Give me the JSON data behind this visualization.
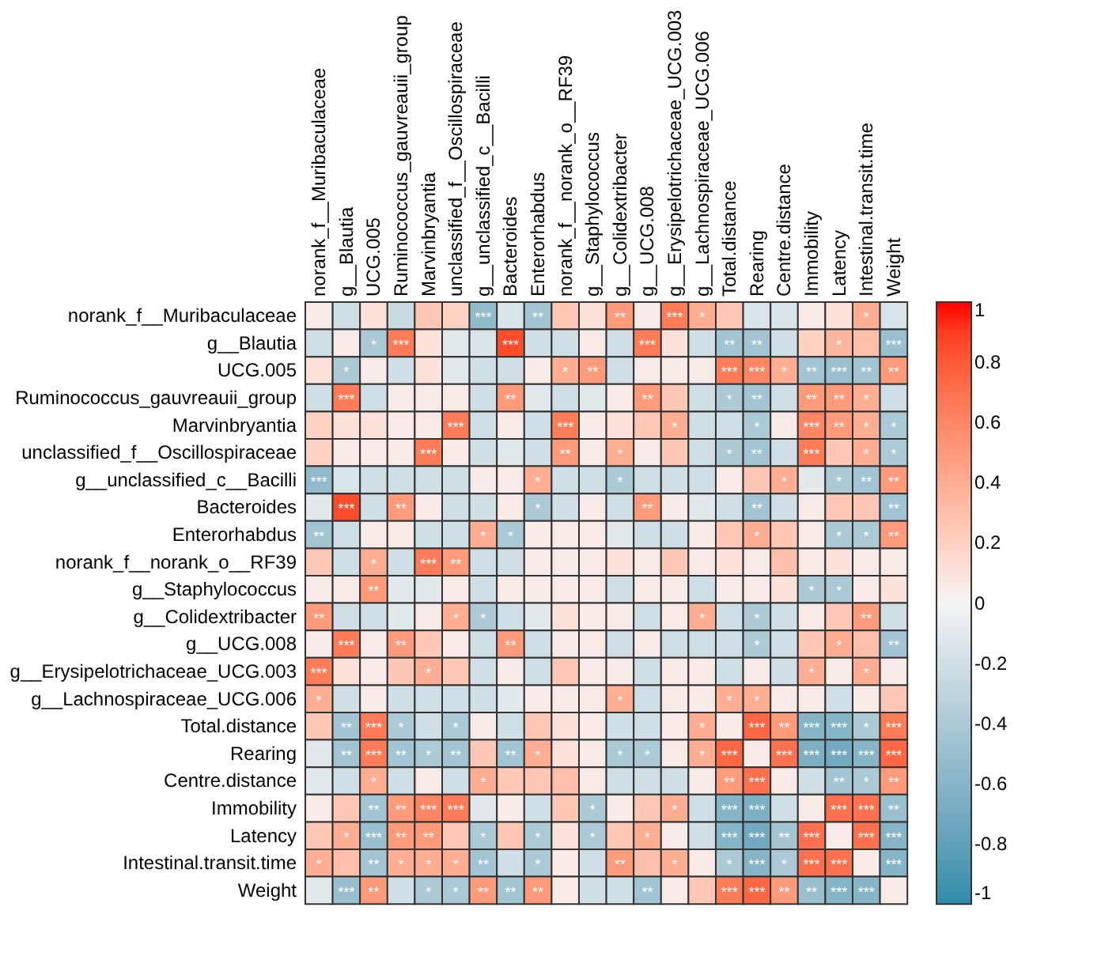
{
  "chart_data": {
    "type": "heatmap",
    "categories": [
      "norank_f__Muribaculaceae",
      "g__Blautia",
      "UCG.005",
      "Ruminococcus_gauvreauii_group",
      "Marvinbryantia",
      "unclassified_f__Oscillospiraceae",
      "g__unclassified_c__Bacilli",
      "Bacteroides",
      "Enterorhabdus",
      "norank_f__norank_o__RF39",
      "g__Staphylococcus",
      "g__Colidextribacter",
      "g__UCG.008",
      "g__Erysipelotrichaceae_UCG.003",
      "g__Lachnospiraceae_UCG.006",
      "Total.distance",
      "Rearing",
      "Centre.distance",
      "Immobility",
      "Latency",
      "Intestinal.transit.time",
      "Weight"
    ],
    "y_categories": [
      "norank_f__Muribaculaceae",
      "g__Blautia",
      "UCG.005",
      "Ruminococcus_gauvreauii_group",
      "Marvinbryantia",
      "unclassified_f__Oscillospiraceae",
      "g__unclassified_c__Bacilli",
      "Bacteroides",
      "Enterorhabdus",
      "norank_f__norank_o__RF39",
      "g__Staphylococcus",
      "g__Colidextribacter",
      "g__UCG.008",
      "g__Erysipelotrichaceae_UCG.003",
      "g__Lachnospiraceae_UCG.006",
      "Total.distance",
      "Rearing",
      "Centre.distance",
      "Immobility",
      "Latency",
      "Intestinal.transit.time",
      "Weight"
    ],
    "cells": [
      [
        0.05,
        -0.2,
        0.1,
        -0.25,
        0.25,
        0.2,
        -0.55,
        -0.15,
        -0.45,
        0.25,
        0.1,
        0.5,
        0.05,
        0.65,
        0.4,
        0.25,
        -0.15,
        -0.15,
        0.05,
        0.1,
        0.4,
        -0.15
      ],
      [
        -0.2,
        0.05,
        -0.4,
        0.65,
        0.1,
        -0.1,
        -0.15,
        0.85,
        -0.2,
        -0.2,
        0.05,
        -0.2,
        0.65,
        0.1,
        -0.2,
        -0.45,
        -0.45,
        -0.2,
        0.2,
        0.35,
        0.3,
        -0.5
      ],
      [
        0.1,
        -0.4,
        0.05,
        -0.2,
        0.1,
        -0.1,
        -0.2,
        -0.2,
        0.05,
        0.4,
        0.5,
        -0.2,
        0.05,
        0.05,
        0.05,
        0.65,
        0.6,
        0.4,
        -0.45,
        -0.5,
        -0.45,
        0.5
      ],
      [
        -0.2,
        0.65,
        -0.2,
        0.05,
        0.05,
        0.05,
        -0.2,
        0.5,
        -0.1,
        -0.2,
        -0.1,
        0.05,
        0.5,
        0.25,
        -0.2,
        -0.4,
        -0.45,
        -0.2,
        0.5,
        0.5,
        0.4,
        -0.2
      ],
      [
        0.2,
        0.1,
        0.1,
        0.05,
        0.05,
        0.65,
        -0.2,
        0.05,
        -0.2,
        0.65,
        0.05,
        0.1,
        0.25,
        0.4,
        -0.2,
        -0.2,
        -0.4,
        0.05,
        0.6,
        0.5,
        0.4,
        -0.4
      ],
      [
        0.2,
        0.05,
        0.05,
        0.05,
        0.65,
        0.05,
        -0.2,
        -0.1,
        -0.2,
        0.5,
        0.05,
        0.4,
        0.05,
        0.25,
        -0.2,
        -0.4,
        -0.45,
        -0.2,
        0.65,
        0.25,
        0.4,
        -0.4
      ],
      [
        -0.55,
        -0.15,
        -0.2,
        -0.2,
        -0.2,
        -0.2,
        0.05,
        0.05,
        0.4,
        -0.2,
        -0.2,
        -0.4,
        -0.2,
        -0.2,
        -0.2,
        0.05,
        0.25,
        0.4,
        -0.1,
        -0.4,
        -0.45,
        0.5
      ],
      [
        -0.1,
        0.85,
        -0.2,
        0.5,
        0.05,
        -0.2,
        -0.2,
        0.05,
        -0.4,
        -0.2,
        0.05,
        -0.2,
        0.5,
        0.05,
        -0.1,
        -0.2,
        -0.45,
        -0.2,
        0.05,
        0.25,
        0.25,
        -0.45
      ],
      [
        -0.45,
        -0.2,
        0.05,
        0.05,
        -0.2,
        -0.2,
        0.4,
        -0.4,
        0.05,
        0.05,
        0.05,
        -0.1,
        -0.2,
        -0.2,
        0.05,
        0.25,
        0.4,
        0.25,
        0.05,
        -0.4,
        -0.4,
        0.5
      ],
      [
        0.25,
        -0.2,
        0.4,
        -0.2,
        0.65,
        0.5,
        -0.2,
        -0.2,
        0.05,
        0.05,
        0.05,
        0.1,
        0.05,
        0.25,
        0.05,
        0.1,
        0.05,
        0.3,
        0.05,
        0.1,
        0.05,
        0.05
      ],
      [
        0.05,
        0.05,
        0.5,
        -0.1,
        -0.1,
        0.05,
        -0.2,
        0.05,
        0.05,
        0.05,
        0.05,
        -0.2,
        0.05,
        0.05,
        -0.2,
        0.05,
        0.05,
        0.1,
        -0.4,
        -0.4,
        0.05,
        0.1
      ],
      [
        0.5,
        -0.2,
        -0.2,
        -0.1,
        0.05,
        0.4,
        -0.4,
        -0.2,
        -0.1,
        0.1,
        0.05,
        0.05,
        -0.2,
        0.05,
        0.4,
        -0.2,
        -0.4,
        -0.2,
        0.05,
        0.25,
        0.5,
        -0.2
      ],
      [
        0.05,
        0.65,
        0.05,
        0.5,
        0.25,
        0.05,
        -0.2,
        0.5,
        -0.2,
        0.05,
        0.05,
        -0.2,
        0.05,
        -0.2,
        -0.2,
        -0.2,
        -0.4,
        -0.2,
        0.25,
        0.4,
        0.3,
        -0.45
      ],
      [
        0.65,
        0.1,
        0.05,
        0.25,
        0.4,
        0.25,
        -0.2,
        0.05,
        -0.2,
        0.25,
        0.05,
        0.05,
        -0.2,
        0.05,
        0.05,
        -0.2,
        0.05,
        -0.2,
        0.4,
        0.05,
        0.4,
        0.05
      ],
      [
        0.4,
        -0.2,
        0.05,
        -0.2,
        -0.2,
        -0.2,
        -0.2,
        -0.1,
        0.05,
        0.05,
        0.05,
        0.4,
        -0.2,
        0.05,
        0.05,
        0.4,
        0.4,
        0.05,
        0.05,
        -0.2,
        0.05,
        0.25
      ],
      [
        0.25,
        -0.45,
        0.65,
        -0.4,
        -0.2,
        -0.4,
        0.05,
        -0.2,
        0.25,
        0.1,
        0.05,
        -0.2,
        -0.2,
        0.05,
        0.4,
        0.05,
        0.75,
        0.5,
        -0.6,
        -0.6,
        -0.4,
        0.65
      ],
      [
        -0.1,
        -0.45,
        0.65,
        -0.45,
        -0.4,
        -0.45,
        0.25,
        -0.45,
        0.4,
        0.1,
        0.05,
        -0.4,
        -0.4,
        0.05,
        0.4,
        0.75,
        0.05,
        0.7,
        -0.65,
        -0.7,
        -0.6,
        0.75
      ],
      [
        -0.1,
        -0.2,
        0.4,
        -0.2,
        0.05,
        -0.2,
        0.4,
        0.25,
        0.25,
        0.3,
        0.05,
        -0.2,
        -0.2,
        -0.2,
        0.05,
        0.5,
        0.7,
        0.05,
        -0.2,
        -0.45,
        -0.4,
        0.5
      ],
      [
        0.05,
        0.25,
        -0.45,
        0.5,
        0.6,
        0.65,
        -0.1,
        0.05,
        -0.2,
        0.25,
        -0.4,
        0.05,
        0.25,
        0.4,
        -0.2,
        -0.6,
        -0.65,
        -0.2,
        0.05,
        0.7,
        0.7,
        -0.5
      ],
      [
        0.25,
        0.4,
        -0.5,
        0.5,
        0.5,
        0.25,
        -0.4,
        0.25,
        -0.4,
        0.1,
        -0.4,
        0.25,
        0.4,
        0.05,
        -0.2,
        -0.6,
        -0.7,
        -0.45,
        0.7,
        0.05,
        0.7,
        -0.6
      ],
      [
        0.4,
        0.3,
        -0.45,
        0.4,
        0.4,
        0.4,
        -0.45,
        -0.2,
        -0.4,
        0.05,
        -0.2,
        0.5,
        0.3,
        0.4,
        0.05,
        -0.4,
        -0.6,
        -0.4,
        0.7,
        0.7,
        0.05,
        -0.6
      ],
      [
        -0.1,
        -0.5,
        0.5,
        -0.2,
        -0.4,
        -0.4,
        0.5,
        -0.45,
        0.5,
        0.05,
        -0.2,
        -0.2,
        -0.45,
        0.05,
        0.25,
        0.65,
        0.75,
        0.5,
        -0.5,
        -0.6,
        -0.6,
        0.05
      ]
    ],
    "cell_labels": [
      [
        null,
        null,
        null,
        null,
        null,
        null,
        "***",
        null,
        "**",
        null,
        null,
        "**",
        null,
        "***",
        "*",
        null,
        null,
        null,
        null,
        null,
        "*",
        null
      ],
      [
        null,
        null,
        "*",
        "***",
        null,
        null,
        null,
        "***",
        null,
        null,
        null,
        null,
        "***",
        null,
        null,
        "**",
        "**",
        null,
        null,
        "*",
        null,
        "***"
      ],
      [
        null,
        "*",
        null,
        null,
        null,
        null,
        null,
        null,
        null,
        "*",
        "**",
        null,
        null,
        null,
        null,
        "***",
        "***",
        "*",
        "**",
        "***",
        "**",
        "**"
      ],
      [
        null,
        "***",
        null,
        null,
        null,
        null,
        null,
        "**",
        null,
        null,
        null,
        null,
        "**",
        null,
        null,
        "*",
        "**",
        null,
        "**",
        "**",
        "*",
        null
      ],
      [
        null,
        null,
        null,
        null,
        null,
        "***",
        null,
        null,
        null,
        "***",
        null,
        null,
        null,
        "*",
        null,
        null,
        "*",
        null,
        "***",
        "**",
        "*",
        "*"
      ],
      [
        null,
        null,
        null,
        null,
        "***",
        null,
        null,
        null,
        null,
        "**",
        null,
        "*",
        null,
        null,
        null,
        "*",
        "**",
        null,
        "***",
        null,
        "*",
        "*"
      ],
      [
        "***",
        null,
        null,
        null,
        null,
        null,
        null,
        null,
        "*",
        null,
        null,
        "*",
        null,
        null,
        null,
        null,
        null,
        "*",
        null,
        "*",
        "**",
        "**"
      ],
      [
        null,
        "***",
        null,
        "**",
        null,
        null,
        null,
        null,
        "*",
        null,
        null,
        null,
        "**",
        null,
        null,
        null,
        "**",
        null,
        null,
        null,
        null,
        "**"
      ],
      [
        "**",
        null,
        null,
        null,
        null,
        null,
        "*",
        "*",
        null,
        null,
        null,
        null,
        null,
        null,
        null,
        null,
        "*",
        null,
        null,
        "*",
        "*",
        "**"
      ],
      [
        null,
        null,
        "*",
        null,
        "***",
        "**",
        null,
        null,
        null,
        null,
        null,
        null,
        null,
        null,
        null,
        null,
        null,
        null,
        null,
        null,
        null,
        null
      ],
      [
        null,
        null,
        "**",
        null,
        null,
        null,
        null,
        null,
        null,
        null,
        null,
        null,
        null,
        null,
        null,
        null,
        null,
        null,
        "*",
        "*",
        null,
        null
      ],
      [
        "**",
        null,
        null,
        null,
        null,
        "*",
        "*",
        null,
        null,
        null,
        null,
        null,
        null,
        null,
        "*",
        null,
        "*",
        null,
        null,
        null,
        "**",
        null
      ],
      [
        null,
        "***",
        null,
        "**",
        null,
        null,
        null,
        "**",
        null,
        null,
        null,
        null,
        null,
        null,
        null,
        null,
        "*",
        null,
        null,
        "*",
        null,
        "**"
      ],
      [
        "***",
        null,
        null,
        null,
        "*",
        null,
        null,
        null,
        null,
        null,
        null,
        null,
        null,
        null,
        null,
        null,
        null,
        null,
        "*",
        null,
        "*",
        null
      ],
      [
        "*",
        null,
        null,
        null,
        null,
        null,
        null,
        null,
        null,
        null,
        null,
        "*",
        null,
        null,
        null,
        "*",
        "*",
        null,
        null,
        null,
        null,
        null
      ],
      [
        null,
        "**",
        "***",
        "*",
        null,
        "*",
        null,
        null,
        null,
        null,
        null,
        null,
        null,
        null,
        "*",
        null,
        "***",
        "**",
        "***",
        "***",
        "*",
        "***"
      ],
      [
        null,
        "**",
        "***",
        "**",
        "*",
        "**",
        null,
        "**",
        "*",
        null,
        null,
        "*",
        "*",
        null,
        "*",
        "***",
        null,
        "***",
        "***",
        "***",
        "***",
        "***"
      ],
      [
        null,
        null,
        "*",
        null,
        null,
        null,
        "*",
        null,
        null,
        null,
        null,
        null,
        null,
        null,
        null,
        "**",
        "***",
        null,
        null,
        "**",
        "*",
        "**"
      ],
      [
        null,
        null,
        "**",
        "**",
        "***",
        "***",
        null,
        null,
        null,
        null,
        "*",
        null,
        null,
        "*",
        null,
        "***",
        "***",
        null,
        null,
        "***",
        "***",
        "**"
      ],
      [
        null,
        "*",
        "***",
        "**",
        "**",
        null,
        "*",
        null,
        "*",
        null,
        "*",
        null,
        "*",
        null,
        null,
        "***",
        "***",
        "**",
        "***",
        null,
        "***",
        "***"
      ],
      [
        "*",
        null,
        "**",
        "*",
        "*",
        "*",
        "**",
        null,
        "*",
        null,
        null,
        "**",
        null,
        "*",
        null,
        "*",
        "***",
        "*",
        "***",
        "***",
        null,
        "***"
      ],
      [
        null,
        "***",
        "**",
        null,
        "*",
        "*",
        "**",
        "**",
        "**",
        null,
        null,
        null,
        "**",
        null,
        null,
        "***",
        "***",
        "**",
        "**",
        "***",
        "***",
        null
      ]
    ],
    "clim": [
      -1,
      1
    ],
    "cticks": [
      -1,
      -0.8,
      -0.6,
      -0.4,
      -0.2,
      0,
      0.2,
      0.4,
      0.6,
      0.8,
      1
    ]
  }
}
